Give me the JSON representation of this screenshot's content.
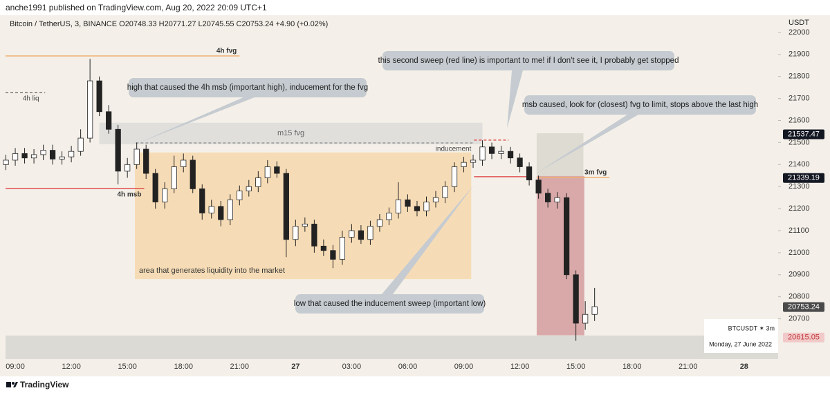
{
  "chart_data": {
    "type": "candlestick",
    "published": "anche1991 published on TradingView.com, Aug 20, 2022 20:09 UTC+1",
    "legend": "Bitcoin / TetherUS, 3, BINANCE  O20748.33  H20771.27  L20745.55  C20753.24  +4.90 (+0.02%)",
    "unit": "USDT",
    "brand": "TradingView",
    "colors": {
      "up": "#ffffff",
      "down": "#222222",
      "outline": "#222222"
    },
    "x": [
      -0.5,
      0,
      0.5,
      1,
      1.5,
      2,
      2.5,
      3,
      3.5,
      4,
      4.5,
      5,
      5.5,
      6,
      6.5,
      7,
      7.5,
      8,
      8.5,
      9,
      9.5,
      10,
      10.5,
      11,
      11.5,
      12,
      12.5,
      13,
      13.5,
      14,
      14.5,
      15,
      15.5,
      16,
      16.5,
      17,
      17.5,
      18,
      18.5,
      19,
      19.5,
      20,
      20.5,
      21,
      21.5,
      22,
      22.5,
      23,
      23.5,
      24,
      24.5,
      25,
      25.5,
      26,
      26.5,
      27,
      27.5,
      28,
      28.5,
      29,
      29.5,
      30,
      30.5,
      31
    ],
    "open": [
      21400,
      21420,
      21450,
      21430,
      21445,
      21465,
      21425,
      21435,
      21460,
      21520,
      21780,
      21640,
      21560,
      21370,
      21400,
      21470,
      21360,
      21230,
      21290,
      21390,
      21420,
      21290,
      21180,
      21210,
      21150,
      21240,
      21280,
      21300,
      21340,
      21390,
      21360,
      21060,
      21120,
      21130,
      21030,
      21010,
      20970,
      21070,
      21100,
      21060,
      21120,
      21150,
      21180,
      21240,
      21210,
      21190,
      21230,
      21250,
      21300,
      21390,
      21410,
      21420,
      21480,
      21450,
      21460,
      21430,
      21390,
      21330,
      21270,
      21230,
      21250,
      20900,
      20680,
      20720
    ],
    "high": [
      21445,
      21475,
      21475,
      21470,
      21490,
      21490,
      21460,
      21485,
      21560,
      21880,
      21800,
      21670,
      21580,
      21430,
      21500,
      21490,
      21380,
      21320,
      21440,
      21450,
      21440,
      21310,
      21240,
      21235,
      21265,
      21305,
      21330,
      21370,
      21420,
      21415,
      21380,
      21150,
      21160,
      21150,
      21060,
      21035,
      21100,
      21130,
      21125,
      21145,
      21175,
      21205,
      21320,
      21265,
      21235,
      21255,
      21280,
      21325,
      21410,
      21435,
      21445,
      21510,
      21500,
      21485,
      21480,
      21450,
      21410,
      21350,
      21290,
      21275,
      21270,
      20920,
      20780,
      20840
    ],
    "low": [
      21375,
      21395,
      21405,
      21405,
      21420,
      21400,
      21400,
      21410,
      21440,
      21500,
      21620,
      21540,
      21310,
      21340,
      21380,
      21335,
      21200,
      21200,
      21270,
      21365,
      21270,
      21150,
      21155,
      21120,
      21125,
      21215,
      21255,
      21275,
      21315,
      21340,
      20980,
      21030,
      21095,
      21000,
      20985,
      20930,
      20945,
      21045,
      21040,
      21035,
      21095,
      21125,
      21155,
      21185,
      21165,
      21165,
      21205,
      21225,
      21275,
      21365,
      21385,
      21395,
      21425,
      21425,
      21405,
      21365,
      21305,
      21245,
      21205,
      21200,
      20880,
      20600,
      20650,
      20690
    ],
    "close": [
      21420,
      21450,
      21430,
      21445,
      21465,
      21425,
      21435,
      21460,
      21520,
      21780,
      21640,
      21560,
      21370,
      21400,
      21470,
      21360,
      21230,
      21290,
      21390,
      21420,
      21290,
      21180,
      21210,
      21150,
      21240,
      21280,
      21300,
      21340,
      21390,
      21360,
      21060,
      21120,
      21130,
      21030,
      21010,
      20970,
      21070,
      21100,
      21060,
      21120,
      21150,
      21180,
      21240,
      21210,
      21190,
      21230,
      21250,
      21300,
      21390,
      21410,
      21420,
      21480,
      21450,
      21460,
      21430,
      21390,
      21330,
      21270,
      21230,
      21250,
      20900,
      20680,
      20720,
      20755
    ],
    "xlim": [
      -0.52,
      40.82
    ],
    "ylim": [
      20517,
      22053
    ],
    "xticks": [
      {
        "value": 0,
        "label": "09:00"
      },
      {
        "value": 3,
        "label": "12:00"
      },
      {
        "value": 6,
        "label": "15:00"
      },
      {
        "value": 9,
        "label": "18:00"
      },
      {
        "value": 12,
        "label": "21:00"
      },
      {
        "value": 15,
        "label": "27"
      },
      {
        "value": 18,
        "label": "03:00"
      },
      {
        "value": 21,
        "label": "06:00"
      },
      {
        "value": 24,
        "label": "09:00"
      },
      {
        "value": 27,
        "label": "12:00"
      },
      {
        "value": 30,
        "label": "15:00"
      },
      {
        "value": 33,
        "label": "18:00"
      },
      {
        "value": 36,
        "label": "21:00"
      },
      {
        "value": 39,
        "label": "28"
      }
    ],
    "yticks": [
      20700,
      20800,
      20900,
      21000,
      21100,
      21200,
      21300,
      21400,
      21500,
      21600,
      21700,
      21800,
      21900,
      22000
    ],
    "price_labels": [
      {
        "value": 21537.47,
        "color": "#131722",
        "text_color": "#ffffff"
      },
      {
        "value": 21339.19,
        "color": "#131722",
        "text_color": "#ffffff"
      },
      {
        "value": 20753.24,
        "color": "#4a4a4a",
        "text_color": "#ffffff"
      },
      {
        "value": 20615.05,
        "color": "#f2c9c9",
        "text_color": "#c23b3b"
      }
    ],
    "zones": [
      {
        "x": [
          -0.52,
          40.82
        ],
        "y": [
          20517,
          20624
        ],
        "color": "#dcdad4"
      },
      {
        "x": [
          6.4,
          24.4
        ],
        "y": [
          20880,
          21455
        ],
        "color": "#f6dcb6",
        "label": "area that generates liquidity into the market"
      },
      {
        "x": [
          4.5,
          25
        ],
        "y": [
          21492,
          21590
        ],
        "color": "#e0dfdc",
        "label": "m15 fvg"
      },
      {
        "x": [
          27.9,
          30.4
        ],
        "y": [
          21348,
          21542
        ],
        "color": "#dedbd2"
      },
      {
        "x": [
          27.9,
          30.45
        ],
        "y": [
          20625,
          21348
        ],
        "color": "#d9a9a9"
      }
    ],
    "levels": [
      {
        "label": "4h fvg",
        "x": [
          -0.52,
          12
        ],
        "y": 21893,
        "color": "#f0b070",
        "dash": false,
        "label_pos": "above"
      },
      {
        "label": "4h liq",
        "x": [
          -0.52,
          1.6
        ],
        "y": 21727,
        "color": "#777777",
        "dash": true,
        "label_pos": "below"
      },
      {
        "label": "4h msb",
        "x": [
          -0.52,
          6.9
        ],
        "y": 21292,
        "color": "#e05252",
        "dash": false,
        "label_pos": "below"
      },
      {
        "label": "inducement",
        "x": [
          6.45,
          24.55
        ],
        "y": 21498,
        "color": "#999999",
        "dash": true,
        "label_pos": "below"
      },
      {
        "x": [
          24.55,
          26.4
        ],
        "y": 21511,
        "color": "#e05252",
        "dash": true
      },
      {
        "x": [
          24.55,
          27.5
        ],
        "y": 21345,
        "color": "#e05252",
        "dash": false
      },
      {
        "label": "3m fvg",
        "x": [
          27.9,
          31.8
        ],
        "y": 21342,
        "color": "#f0b070",
        "dash": false,
        "label_pos": "above"
      }
    ],
    "annotations": [
      "high that caused the 4h msb (important high), inducement for the fvg",
      "this second sweep (red line) is important to me! if I don't see it, I probably get stopped",
      "msb caused, look for (closest) fvg to limit, stops above the last high",
      "low that caused the inducement sweep (important low)"
    ],
    "info": {
      "symbol": "BTCUSDT ✶ 3m",
      "date": "Monday, 27 June 2022"
    }
  }
}
